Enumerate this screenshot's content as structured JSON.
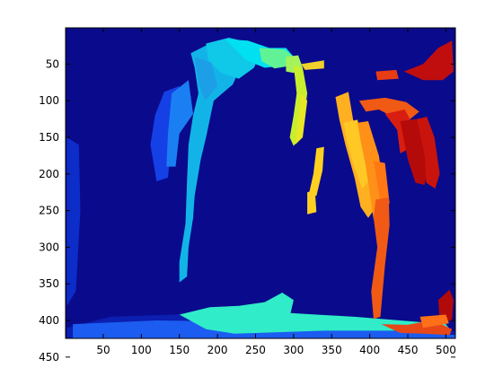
{
  "chart_data": {
    "type": "heatmap",
    "title": "",
    "xlabel": "",
    "ylabel": "",
    "colormap": "jet",
    "background_color": "#0a0a8c",
    "x_range": [
      0.5,
      512.5
    ],
    "y_range": [
      0.5,
      424.5
    ],
    "y_reversed": true,
    "grid": false,
    "x_ticks": [
      50,
      100,
      150,
      200,
      250,
      300,
      350,
      400,
      450,
      500
    ],
    "y_ticks": [
      50,
      100,
      150,
      200,
      250,
      300,
      350,
      400,
      450
    ],
    "x_tick_labels": [
      "50",
      "100",
      "150",
      "200",
      "250",
      "300",
      "350",
      "400",
      "450",
      "500"
    ],
    "y_tick_labels": [
      "50",
      "100",
      "150",
      "200",
      "250",
      "300",
      "350",
      "400",
      "450"
    ],
    "regions": [
      {
        "color": "#0b1fb0",
        "points": [
          [
            2,
            410
          ],
          [
            60,
            395
          ],
          [
            200,
            390
          ],
          [
            330,
            395
          ],
          [
            512,
            415
          ],
          [
            512,
            424
          ],
          [
            2,
            424
          ]
        ]
      },
      {
        "color": "#0d2dc9",
        "points": [
          [
            2,
            150
          ],
          [
            18,
            160
          ],
          [
            20,
            250
          ],
          [
            14,
            360
          ],
          [
            2,
            380
          ]
        ]
      },
      {
        "color": "#1c5cf0",
        "points": [
          [
            10,
            405
          ],
          [
            120,
            400
          ],
          [
            250,
            402
          ],
          [
            380,
            410
          ],
          [
            512,
            420
          ],
          [
            512,
            424
          ],
          [
            10,
            424
          ]
        ]
      },
      {
        "color": "#1540e6",
        "points": [
          [
            130,
            88
          ],
          [
            150,
            80
          ],
          [
            152,
            110
          ],
          [
            140,
            150
          ],
          [
            135,
            205
          ],
          [
            120,
            210
          ],
          [
            112,
            160
          ],
          [
            118,
            120
          ]
        ]
      },
      {
        "color": "#1a7ff2",
        "points": [
          [
            140,
            90
          ],
          [
            162,
            72
          ],
          [
            168,
            118
          ],
          [
            150,
            145
          ],
          [
            145,
            190
          ],
          [
            133,
            190
          ],
          [
            135,
            145
          ]
        ]
      },
      {
        "color": "#12b4e8",
        "points": [
          [
            165,
            35
          ],
          [
            190,
            22
          ],
          [
            210,
            25
          ],
          [
            232,
            50
          ],
          [
            220,
            78
          ],
          [
            195,
            100
          ],
          [
            185,
            150
          ],
          [
            178,
            180
          ],
          [
            170,
            230
          ],
          [
            168,
            260
          ],
          [
            162,
            300
          ],
          [
            160,
            340
          ],
          [
            150,
            348
          ],
          [
            150,
            320
          ],
          [
            158,
            268
          ],
          [
            160,
            210
          ],
          [
            162,
            160
          ],
          [
            168,
            120
          ],
          [
            175,
            90
          ],
          [
            170,
            55
          ]
        ]
      },
      {
        "color": "#10c8e8",
        "points": [
          [
            185,
            22
          ],
          [
            215,
            14
          ],
          [
            240,
            20
          ],
          [
            260,
            25
          ],
          [
            248,
            55
          ],
          [
            228,
            70
          ],
          [
            205,
            62
          ],
          [
            188,
            45
          ]
        ]
      },
      {
        "color": "#00e0f0",
        "points": [
          [
            210,
            16
          ],
          [
            240,
            18
          ],
          [
            268,
            28
          ],
          [
            290,
            28
          ],
          [
            300,
            40
          ],
          [
            290,
            52
          ],
          [
            262,
            55
          ],
          [
            238,
            45
          ]
        ]
      },
      {
        "color": "#1c9fe6",
        "points": [
          [
            170,
            40
          ],
          [
            192,
            48
          ],
          [
            200,
            80
          ],
          [
            184,
            100
          ],
          [
            176,
            80
          ]
        ]
      },
      {
        "color": "#30ecc8",
        "points": [
          [
            150,
            392
          ],
          [
            190,
            382
          ],
          [
            228,
            380
          ],
          [
            262,
            375
          ],
          [
            285,
            362
          ],
          [
            300,
            372
          ],
          [
            296,
            390
          ],
          [
            330,
            392
          ],
          [
            380,
            395
          ],
          [
            440,
            400
          ],
          [
            500,
            405
          ],
          [
            505,
            412
          ],
          [
            430,
            414
          ],
          [
            340,
            414
          ],
          [
            280,
            416
          ],
          [
            222,
            418
          ],
          [
            185,
            412
          ]
        ]
      },
      {
        "color": "#62f296",
        "points": [
          [
            255,
            28
          ],
          [
            288,
            30
          ],
          [
            300,
            40
          ],
          [
            298,
            52
          ],
          [
            275,
            56
          ],
          [
            258,
            46
          ]
        ]
      },
      {
        "color": "#a6f25a",
        "points": [
          [
            290,
            40
          ],
          [
            306,
            38
          ],
          [
            312,
            55
          ],
          [
            300,
            62
          ],
          [
            290,
            60
          ]
        ]
      },
      {
        "color": "#c8ef2e",
        "points": [
          [
            300,
            52
          ],
          [
            312,
            55
          ],
          [
            318,
            90
          ],
          [
            314,
            120
          ],
          [
            308,
            150
          ],
          [
            300,
            162
          ],
          [
            295,
            150
          ],
          [
            300,
            120
          ],
          [
            304,
            90
          ]
        ]
      },
      {
        "color": "#e8e826",
        "points": [
          [
            310,
            90
          ],
          [
            318,
            100
          ],
          [
            312,
            150
          ],
          [
            302,
            160
          ]
        ]
      },
      {
        "color": "#f0d02a",
        "points": [
          [
            310,
            50
          ],
          [
            340,
            45
          ],
          [
            340,
            56
          ],
          [
            315,
            58
          ]
        ]
      },
      {
        "color": "#ffd020",
        "points": [
          [
            330,
            165
          ],
          [
            340,
            163
          ],
          [
            338,
            195
          ],
          [
            330,
            230
          ],
          [
            320,
            228
          ],
          [
            326,
            200
          ]
        ]
      },
      {
        "color": "#ffd020",
        "points": [
          [
            318,
            225
          ],
          [
            328,
            222
          ],
          [
            330,
            252
          ],
          [
            318,
            255
          ]
        ]
      },
      {
        "color": "#ffb020",
        "points": [
          [
            355,
            95
          ],
          [
            372,
            88
          ],
          [
            378,
            125
          ],
          [
            392,
            170
          ],
          [
            402,
            210
          ],
          [
            405,
            250
          ],
          [
            398,
            260
          ],
          [
            388,
            245
          ],
          [
            380,
            205
          ],
          [
            368,
            160
          ],
          [
            360,
            125
          ]
        ]
      },
      {
        "color": "#ffc824",
        "points": [
          [
            366,
            130
          ],
          [
            384,
            126
          ],
          [
            392,
            170
          ],
          [
            398,
            210
          ],
          [
            390,
            220
          ],
          [
            378,
            185
          ],
          [
            370,
            155
          ]
        ]
      },
      {
        "color": "#ff9018",
        "points": [
          [
            384,
            130
          ],
          [
            398,
            128
          ],
          [
            412,
            175
          ],
          [
            418,
            215
          ],
          [
            422,
            250
          ],
          [
            418,
            265
          ],
          [
            405,
            262
          ],
          [
            400,
            225
          ],
          [
            394,
            185
          ],
          [
            388,
            155
          ]
        ]
      },
      {
        "color": "#ff7814",
        "points": [
          [
            405,
            182
          ],
          [
            420,
            185
          ],
          [
            426,
            240
          ],
          [
            416,
            250
          ]
        ]
      },
      {
        "color": "#f05a14",
        "points": [
          [
            408,
            235
          ],
          [
            425,
            232
          ],
          [
            426,
            270
          ],
          [
            420,
            325
          ],
          [
            414,
            395
          ],
          [
            405,
            398
          ],
          [
            402,
            360
          ],
          [
            410,
            300
          ],
          [
            405,
            260
          ]
        ]
      },
      {
        "color": "#f05a14",
        "points": [
          [
            386,
            100
          ],
          [
            420,
            96
          ],
          [
            448,
            102
          ],
          [
            465,
            115
          ],
          [
            452,
            126
          ],
          [
            430,
            122
          ],
          [
            412,
            112
          ],
          [
            395,
            115
          ]
        ]
      },
      {
        "color": "#e83c14",
        "points": [
          [
            408,
            60
          ],
          [
            435,
            58
          ],
          [
            438,
            70
          ],
          [
            410,
            72
          ]
        ]
      },
      {
        "color": "#d81e10",
        "points": [
          [
            420,
            118
          ],
          [
            446,
            112
          ],
          [
            458,
            135
          ],
          [
            452,
            165
          ],
          [
            440,
            172
          ],
          [
            436,
            140
          ]
        ]
      },
      {
        "color": "#c00e0e",
        "points": [
          [
            445,
            60
          ],
          [
            470,
            50
          ],
          [
            490,
            28
          ],
          [
            508,
            18
          ],
          [
            510,
            60
          ],
          [
            496,
            72
          ],
          [
            470,
            72
          ]
        ]
      },
      {
        "color": "#b40a0a",
        "points": [
          [
            440,
            128
          ],
          [
            462,
            125
          ],
          [
            475,
            150
          ],
          [
            478,
            185
          ],
          [
            472,
            215
          ],
          [
            460,
            212
          ],
          [
            450,
            180
          ]
        ]
      },
      {
        "color": "#c8140c",
        "points": [
          [
            462,
            125
          ],
          [
            475,
            122
          ],
          [
            485,
            150
          ],
          [
            492,
            200
          ],
          [
            486,
            220
          ],
          [
            474,
            212
          ],
          [
            472,
            175
          ]
        ]
      },
      {
        "color": "#b00a0a",
        "points": [
          [
            490,
            372
          ],
          [
            505,
            358
          ],
          [
            510,
            372
          ],
          [
            508,
            400
          ],
          [
            492,
            402
          ]
        ]
      },
      {
        "color": "#e84818",
        "points": [
          [
            415,
            405
          ],
          [
            450,
            406
          ],
          [
            470,
            402
          ],
          [
            494,
            405
          ],
          [
            508,
            412
          ],
          [
            505,
            420
          ],
          [
            470,
            418
          ],
          [
            440,
            417
          ]
        ]
      },
      {
        "color": "#ff7018",
        "points": [
          [
            466,
            395
          ],
          [
            500,
            392
          ],
          [
            504,
            404
          ],
          [
            470,
            410
          ]
        ]
      }
    ]
  }
}
